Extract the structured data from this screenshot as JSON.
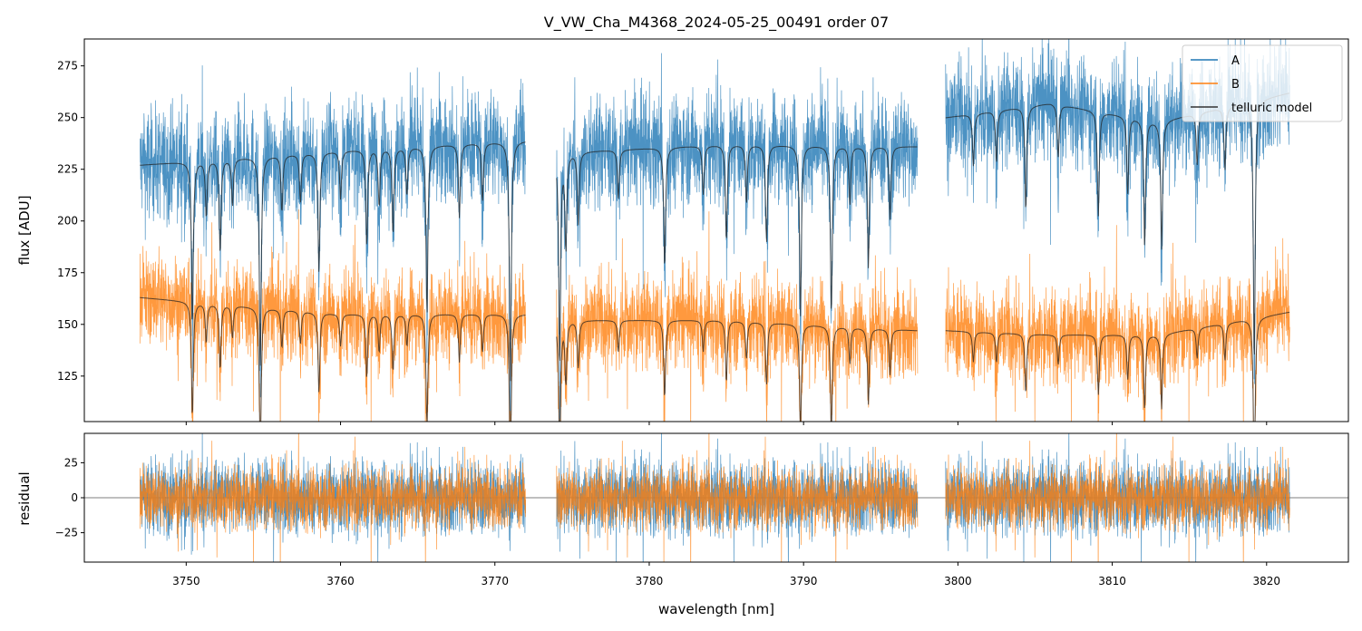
{
  "chart_data": {
    "type": "line",
    "title": "V_VW_Cha_M4368_2024-05-25_00491  order 07",
    "xlabel": "wavelength [nm]",
    "xlim": [
      3743.4,
      3825.3
    ],
    "xticks": [
      3750,
      3760,
      3770,
      3780,
      3790,
      3800,
      3810,
      3820
    ],
    "panels": [
      {
        "name": "flux",
        "ylabel": "flux [ADU]",
        "ylim": [
          103,
          288
        ],
        "yticks": [
          125,
          150,
          175,
          200,
          225,
          250,
          275
        ],
        "legend": {
          "placement": "top-right",
          "entries": [
            "A",
            "B",
            "telluric model"
          ]
        }
      },
      {
        "name": "residual",
        "ylabel": "residual",
        "ylim": [
          -46,
          46
        ],
        "yticks": [
          -25,
          0,
          25
        ],
        "zero_line": true
      }
    ],
    "segments": [
      [
        3747.0,
        3772.0
      ],
      [
        3774.0,
        3797.4
      ],
      [
        3799.2,
        3821.5
      ]
    ],
    "series": [
      {
        "name": "A",
        "color": "#1f77b4",
        "continuum_x": [
          3747,
          3760,
          3772,
          3774,
          3785,
          3797.4,
          3799.2,
          3806,
          3813,
          3821.5
        ],
        "continuum_y": [
          227,
          234,
          239,
          233,
          237,
          236,
          250,
          257,
          248,
          262
        ],
        "noise_sigma": 13
      },
      {
        "name": "B",
        "color": "#ff7f0e",
        "continuum_x": [
          3747,
          3760,
          3772,
          3774,
          3785,
          3797.4,
          3799.2,
          3806,
          3813,
          3821.5
        ],
        "continuum_y": [
          163,
          155,
          155,
          152,
          152,
          147,
          147,
          145,
          145,
          156
        ],
        "noise_sigma": 11
      },
      {
        "name": "telluric model",
        "color": "#333333"
      }
    ],
    "telluric_lines_nm": [
      3750.4,
      3751.3,
      3752.2,
      3753.0,
      3754.8,
      3756.2,
      3757.4,
      3758.6,
      3760.0,
      3761.7,
      3762.5,
      3763.4,
      3764.3,
      3765.6,
      3767.7,
      3769.2,
      3771.0,
      3774.2,
      3774.6,
      3775.4,
      3778.0,
      3781.0,
      3783.5,
      3785.0,
      3786.3,
      3787.6,
      3789.8,
      3791.8,
      3793.0,
      3794.2,
      3795.6,
      3801.0,
      3802.5,
      3804.4,
      3806.5,
      3809.1,
      3811.0,
      3812.1,
      3813.2,
      3815.5,
      3817.3,
      3819.2
    ],
    "telluric_depths": [
      0.35,
      0.12,
      0.2,
      0.1,
      0.45,
      0.12,
      0.1,
      0.25,
      0.1,
      0.2,
      0.12,
      0.18,
      0.1,
      0.35,
      0.15,
      0.12,
      0.5,
      0.45,
      0.2,
      0.15,
      0.1,
      0.25,
      0.1,
      0.2,
      0.12,
      0.2,
      0.35,
      0.35,
      0.12,
      0.25,
      0.15,
      0.1,
      0.1,
      0.2,
      0.1,
      0.2,
      0.15,
      0.25,
      0.25,
      0.1,
      0.12,
      0.5
    ]
  }
}
